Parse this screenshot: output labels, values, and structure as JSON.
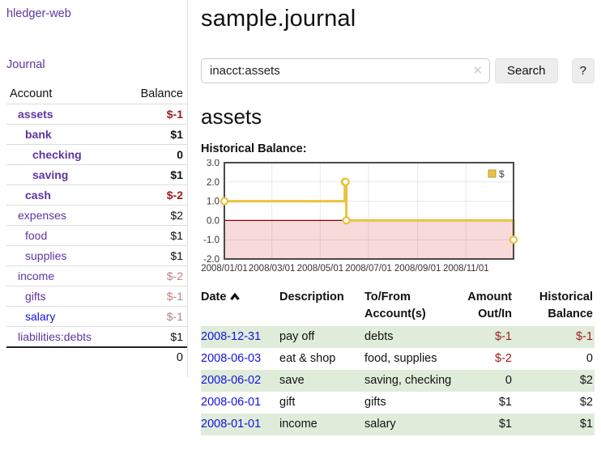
{
  "colors": {
    "brand_purple": "#5e35a0",
    "link_blue": "#1512e0",
    "negative_strong": "#9e1a1a",
    "negative_soft": "#bb8181",
    "row_green": "#dfecda",
    "chart_line_gold": "#e9c341",
    "chart_negative_fill": "#f9dada",
    "chart_zero_line": "#8b0000"
  },
  "sidebar": {
    "brand": "hledger-web",
    "nav_journal": "Journal",
    "accounts": {
      "header_account": "Account",
      "header_balance": "Balance",
      "rows": [
        {
          "name": "assets",
          "balance": "$-1",
          "depth": 1,
          "bold": true,
          "balance_style": "neg-strong",
          "link_style": "purple"
        },
        {
          "name": "bank",
          "balance": "$1",
          "depth": 2,
          "bold": true,
          "balance_style": "pos",
          "link_style": "purple"
        },
        {
          "name": "checking",
          "balance": "0",
          "depth": 3,
          "bold": true,
          "balance_style": "pos",
          "link_style": "purple"
        },
        {
          "name": "saving",
          "balance": "$1",
          "depth": 3,
          "bold": true,
          "balance_style": "pos",
          "link_style": "purple"
        },
        {
          "name": "cash",
          "balance": "$-2",
          "depth": 2,
          "bold": true,
          "balance_style": "neg-strong",
          "link_style": "purple"
        },
        {
          "name": "expenses",
          "balance": "$2",
          "depth": 1,
          "bold": false,
          "balance_style": "pos",
          "link_style": "purple"
        },
        {
          "name": "food",
          "balance": "$1",
          "depth": 2,
          "bold": false,
          "balance_style": "pos",
          "link_style": "purple"
        },
        {
          "name": "supplies",
          "balance": "$1",
          "depth": 2,
          "bold": false,
          "balance_style": "pos",
          "link_style": "purple"
        },
        {
          "name": "income",
          "balance": "$-2",
          "depth": 1,
          "bold": false,
          "balance_style": "neg-soft",
          "link_style": "purple"
        },
        {
          "name": "gifts",
          "balance": "$-1",
          "depth": 2,
          "bold": false,
          "balance_style": "neg-soft",
          "link_style": "purple"
        },
        {
          "name": "salary",
          "balance": "$-1",
          "depth": 2,
          "bold": false,
          "balance_style": "neg-soft",
          "link_style": "blue"
        },
        {
          "name": "liabilities:debts",
          "balance": "$1",
          "depth": 1,
          "bold": false,
          "balance_style": "pos",
          "link_style": "purple"
        }
      ],
      "total": "0"
    }
  },
  "main": {
    "title": "sample.journal",
    "search": {
      "value": "inacct:assets",
      "clear_icon": "✕",
      "search_button": "Search",
      "help_button": "?"
    },
    "account_heading": "assets",
    "register": {
      "headers": {
        "date": "Date",
        "description": "Description",
        "accounts": "To/From Account(s)",
        "amount": "Amount Out/In",
        "balance": "Historical Balance"
      },
      "rows": [
        {
          "date": "2008-12-31",
          "description": "pay off",
          "accounts": "debts",
          "amount": "$-1",
          "balance": "$-1",
          "amount_neg": true,
          "balance_neg": true,
          "shaded": true
        },
        {
          "date": "2008-06-03",
          "description": "eat & shop",
          "accounts": "food, supplies",
          "amount": "$-2",
          "balance": "0",
          "amount_neg": true,
          "balance_neg": false,
          "shaded": false
        },
        {
          "date": "2008-06-02",
          "description": "save",
          "accounts": "saving, checking",
          "amount": "0",
          "balance": "$2",
          "amount_neg": false,
          "balance_neg": false,
          "shaded": true
        },
        {
          "date": "2008-06-01",
          "description": "gift",
          "accounts": "gifts",
          "amount": "$1",
          "balance": "$2",
          "amount_neg": false,
          "balance_neg": false,
          "shaded": false
        },
        {
          "date": "2008-01-01",
          "description": "income",
          "accounts": "salary",
          "amount": "$1",
          "balance": "$1",
          "amount_neg": false,
          "balance_neg": false,
          "shaded": true
        }
      ]
    }
  },
  "chart_data": {
    "type": "line",
    "title": "Historical Balance:",
    "step": true,
    "grid": true,
    "legend_position": "top-right",
    "x_range": [
      "2008-01-01",
      "2008-12-31"
    ],
    "ylim": [
      -2,
      3
    ],
    "y_ticks": [
      "3.0",
      "2.0",
      "1.0",
      "0.0",
      "-1.0",
      "-2.0"
    ],
    "x_ticks": [
      "2008/01/01",
      "2008/03/01",
      "2008/05/01",
      "2008/07/01",
      "2008/09/01",
      "2008/11/01"
    ],
    "series": [
      {
        "name": "$",
        "color": "#e9c341",
        "points": [
          [
            "2008-01-01",
            1
          ],
          [
            "2008-06-01",
            2
          ],
          [
            "2008-06-02",
            2
          ],
          [
            "2008-06-03",
            0
          ],
          [
            "2008-12-31",
            -1
          ]
        ]
      }
    ],
    "negative_region_fill": "#f9dada",
    "zero_line_color": "#8b0000"
  }
}
